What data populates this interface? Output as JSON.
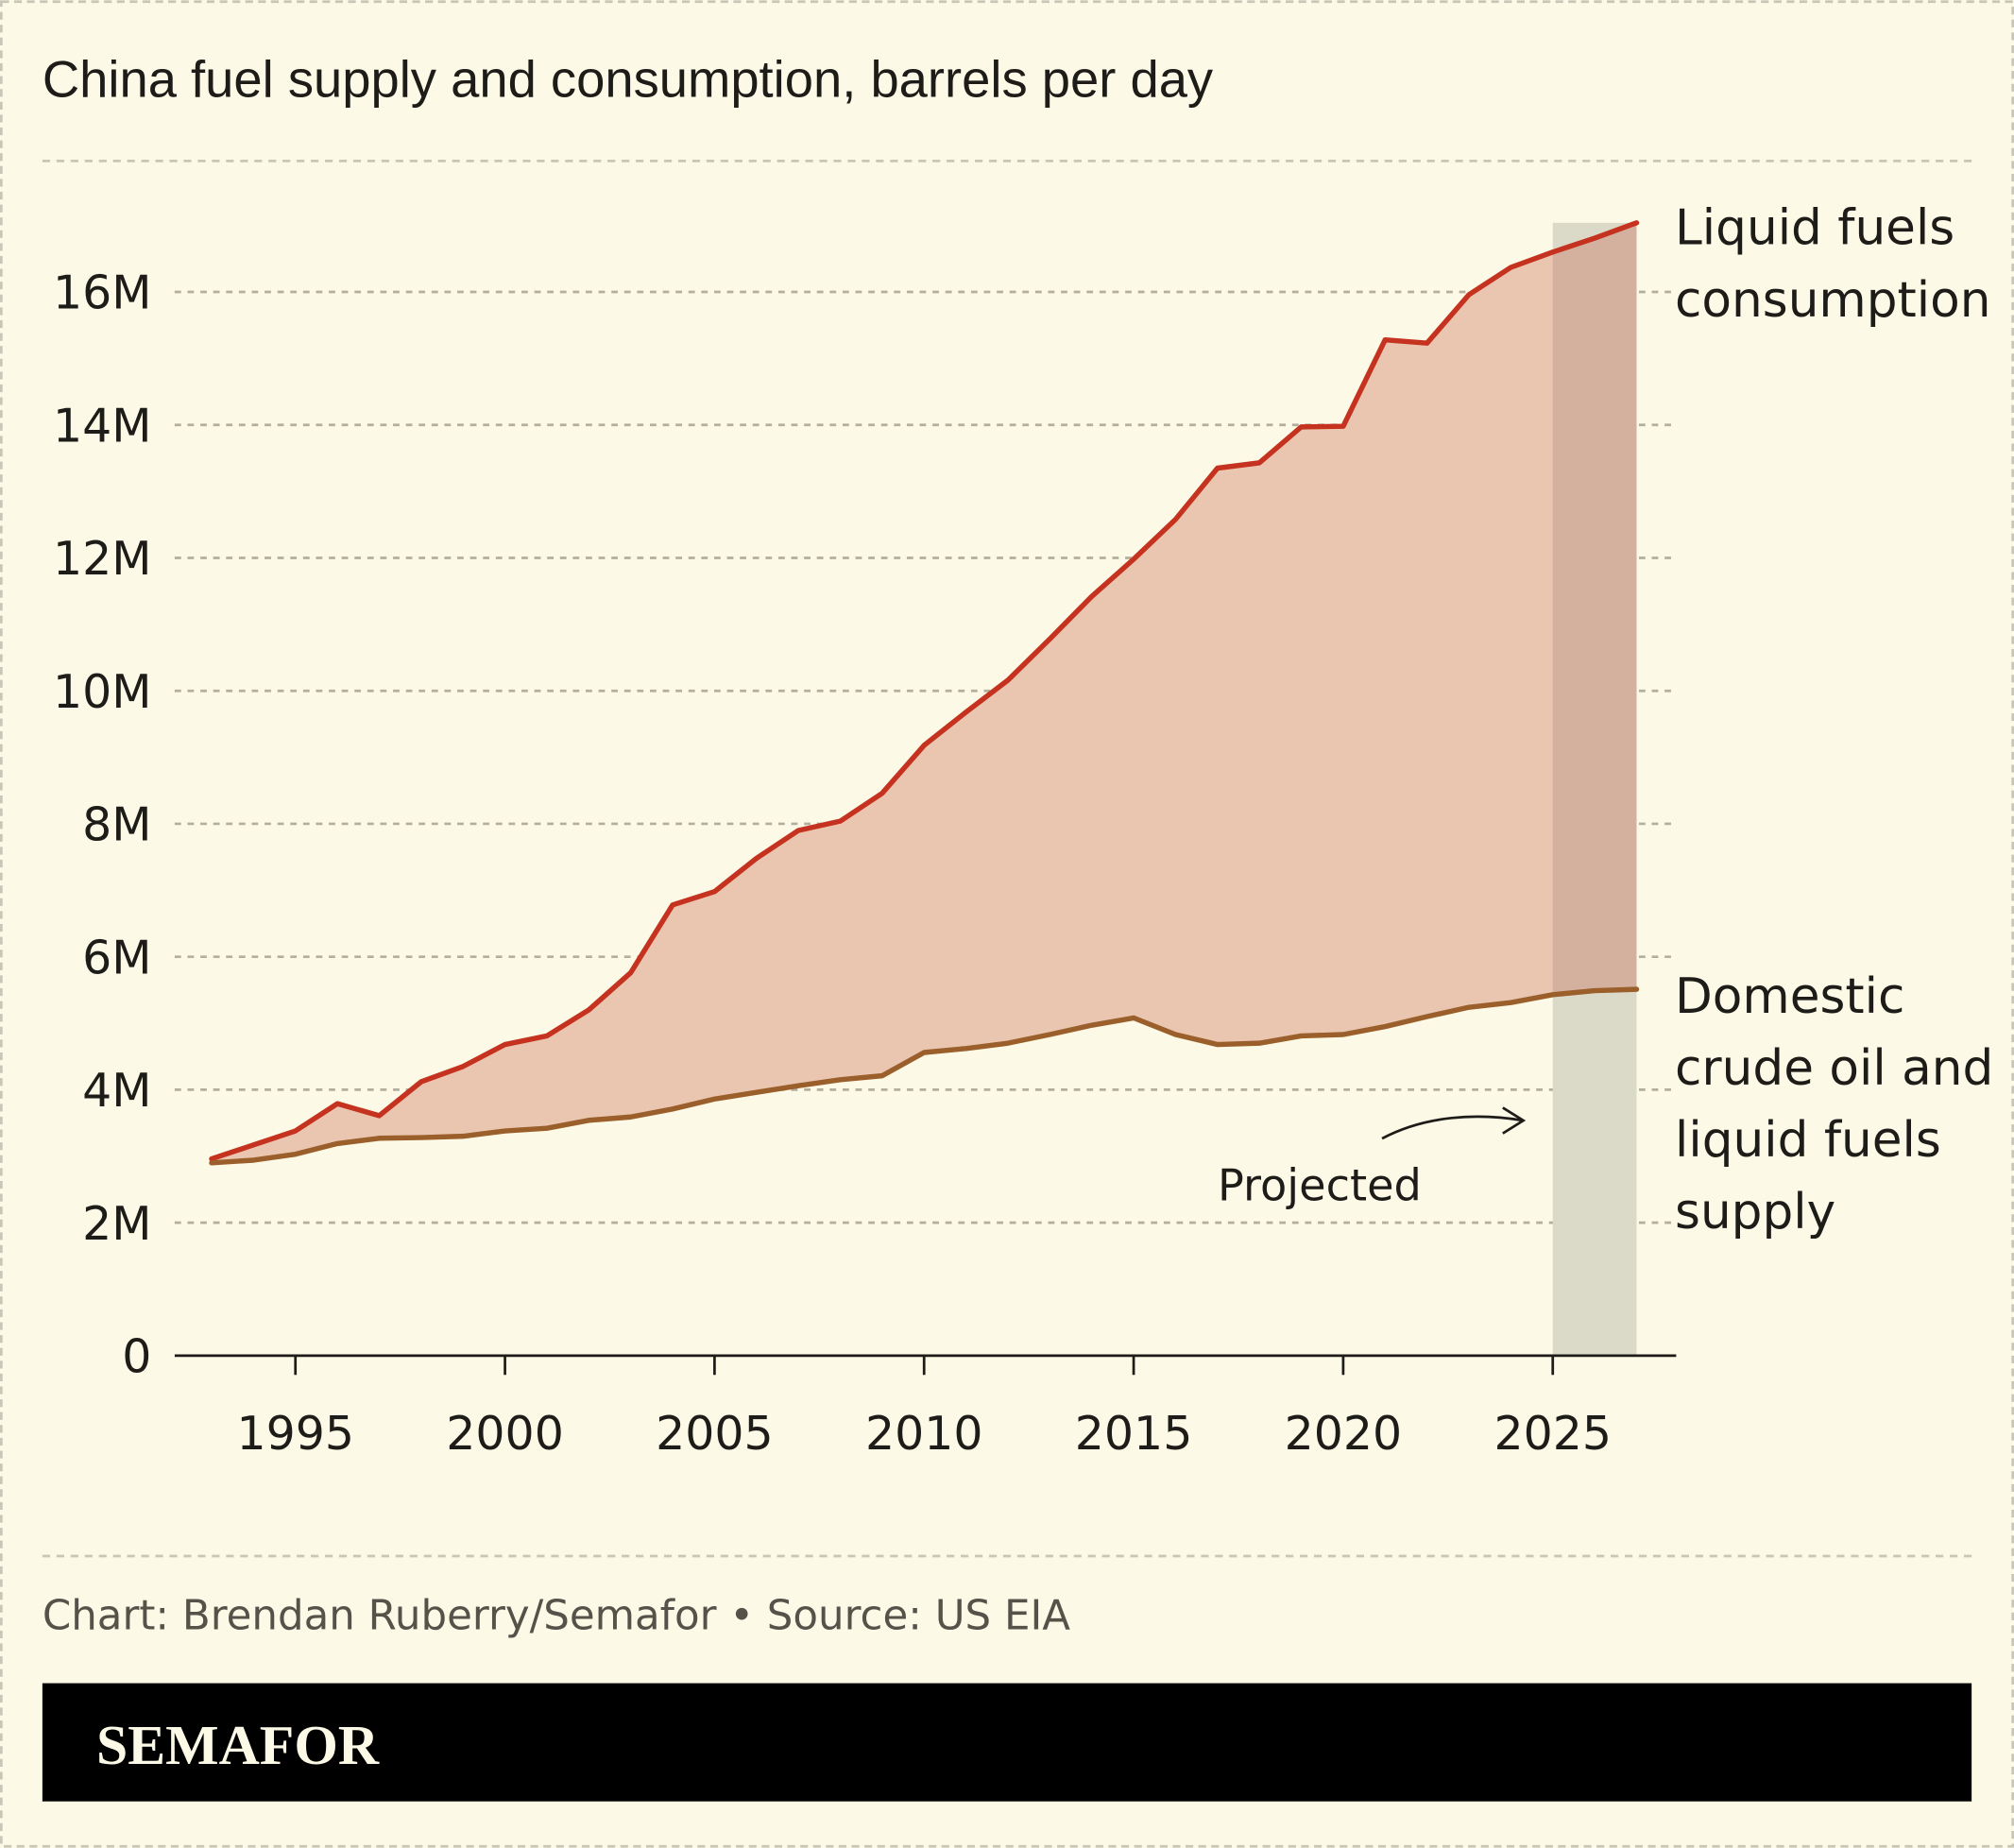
{
  "chart_data": {
    "type": "area",
    "title": "China fuel supply and consumption, barrels per day",
    "xlabel": "",
    "ylabel": "",
    "x": [
      1993,
      1994,
      1995,
      1996,
      1997,
      1998,
      1999,
      2000,
      2001,
      2002,
      2003,
      2004,
      2005,
      2006,
      2007,
      2008,
      2009,
      2010,
      2011,
      2012,
      2013,
      2014,
      2015,
      2016,
      2017,
      2018,
      2019,
      2020,
      2021,
      2022,
      2023,
      2024,
      2025,
      2026,
      2027
    ],
    "series": [
      {
        "name": "Liquid fuels consumption",
        "label_lines": [
          "Liquid fuels",
          "consumption"
        ],
        "color": "#c5321f",
        "values": [
          2.96,
          3.17,
          3.38,
          3.79,
          3.61,
          4.12,
          4.35,
          4.68,
          4.81,
          5.2,
          5.76,
          6.78,
          6.98,
          7.48,
          7.9,
          8.04,
          8.46,
          9.18,
          9.68,
          10.16,
          10.78,
          11.42,
          11.98,
          12.58,
          13.35,
          13.43,
          13.97,
          13.98,
          15.28,
          15.23,
          15.96,
          16.37,
          16.6,
          16.81,
          17.04
        ]
      },
      {
        "name": "Domestic crude oil and liquid fuels supply",
        "label_lines": [
          "Domestic",
          "crude oil and",
          "liquid fuels",
          "supply"
        ],
        "color": "#9a5f2a",
        "values": [
          2.9,
          2.94,
          3.03,
          3.19,
          3.27,
          3.28,
          3.3,
          3.38,
          3.42,
          3.54,
          3.59,
          3.71,
          3.86,
          3.96,
          4.06,
          4.15,
          4.21,
          4.56,
          4.62,
          4.7,
          4.83,
          4.97,
          5.08,
          4.83,
          4.68,
          4.7,
          4.81,
          4.83,
          4.95,
          5.1,
          5.24,
          5.31,
          5.43,
          5.49,
          5.51
        ]
      }
    ],
    "units": "million barrels per day",
    "fill_between_color": "#eac6b0",
    "projected": {
      "from": 2025,
      "to": 2027,
      "label": "Projected",
      "color": "#dbdac8"
    },
    "ylim": [
      0,
      17
    ],
    "yticks": [
      0,
      2,
      4,
      6,
      8,
      10,
      12,
      14,
      16
    ],
    "ytick_labels": [
      "0",
      "2M",
      "4M",
      "6M",
      "8M",
      "10M",
      "12M",
      "14M",
      "16M"
    ],
    "xticks": [
      1995,
      2000,
      2005,
      2010,
      2015,
      2020,
      2025
    ],
    "xtick_labels": [
      "1995",
      "2000",
      "2005",
      "2010",
      "2015",
      "2020",
      "2025"
    ],
    "grid": true,
    "legend": "direct labels at right"
  },
  "footer": {
    "credit": "Chart: Brendan Ruberry/Semafor • Source: US EIA",
    "brand": "SEMAFOR"
  }
}
